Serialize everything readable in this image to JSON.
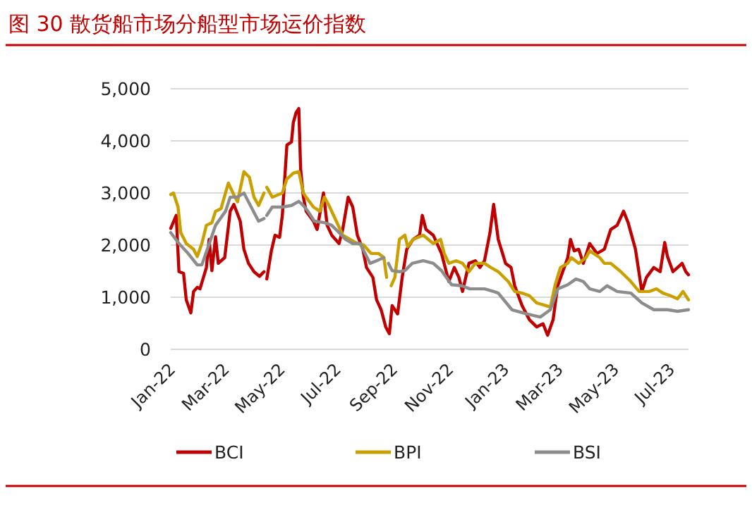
{
  "chart_data": {
    "type": "line",
    "title": "图 30    散货船市场分船型市场运价指数",
    "xlim": [
      "2022-01-01",
      "2023-07-21"
    ],
    "xticks": [
      {
        "value": "2022-01-01",
        "label": "Jan-22"
      },
      {
        "value": "2022-03-01",
        "label": "Mar-22"
      },
      {
        "value": "2022-05-01",
        "label": "May-22"
      },
      {
        "value": "2022-07-01",
        "label": "Jul-22"
      },
      {
        "value": "2022-09-01",
        "label": "Sep-22"
      },
      {
        "value": "2022-11-01",
        "label": "Nov-22"
      },
      {
        "value": "2023-01-01",
        "label": "Jan-23"
      },
      {
        "value": "2023-03-01",
        "label": "Mar-23"
      },
      {
        "value": "2023-05-01",
        "label": "May-23"
      },
      {
        "value": "2023-07-01",
        "label": "Jul-23"
      }
    ],
    "ylim": [
      0,
      5000
    ],
    "yticks": [
      {
        "value": 0,
        "label": "0"
      },
      {
        "value": 1000,
        "label": "1,000"
      },
      {
        "value": 2000,
        "label": "2,000"
      },
      {
        "value": 3000,
        "label": "3,000"
      },
      {
        "value": 4000,
        "label": "4,000"
      },
      {
        "value": 5000,
        "label": "5,000"
      }
    ],
    "grid": "y",
    "legend": "bottom",
    "series": [
      {
        "name": "BCI",
        "color": "#c00000",
        "x": [
          "2022-01-01",
          "2022-01-07",
          "2022-01-10",
          "2022-01-15",
          "2022-01-18",
          "2022-01-23",
          "2022-01-26",
          "2022-01-30",
          "2022-02-02",
          "2022-02-09",
          "2022-02-12",
          "2022-02-15",
          "2022-02-19",
          "2022-02-22",
          "2022-03-01",
          "2022-03-07",
          "2022-03-11",
          "2022-03-18",
          "2022-03-22",
          "2022-03-27",
          "2022-04-02",
          "2022-04-08",
          "2022-04-13",
          "2022-04-14",
          "2022-04-16",
          "2022-04-21",
          "2022-04-25",
          "2022-04-30",
          "2022-05-03",
          "2022-05-08",
          "2022-05-13",
          "2022-05-15",
          "2022-05-18",
          "2022-05-21",
          "2022-05-23",
          "2022-05-26",
          "2022-05-29",
          "2022-06-06",
          "2022-06-10",
          "2022-06-17",
          "2022-06-21",
          "2022-06-26",
          "2022-07-04",
          "2022-07-08",
          "2022-07-14",
          "2022-07-19",
          "2022-07-24",
          "2022-07-30",
          "2022-08-03",
          "2022-08-10",
          "2022-08-14",
          "2022-08-19",
          "2022-08-24",
          "2022-08-28",
          "2022-08-31",
          "2022-09-06",
          "2022-09-11",
          "2022-09-16",
          "2022-09-23",
          "2022-09-30",
          "2022-10-03",
          "2022-10-07",
          "2022-10-15",
          "2022-10-24",
          "2022-11-01",
          "2022-11-07",
          "2022-11-12",
          "2022-11-16",
          "2022-11-23",
          "2022-11-30",
          "2022-12-05",
          "2022-12-10",
          "2022-12-16",
          "2022-12-20",
          "2022-12-25",
          "2023-01-02",
          "2023-01-08",
          "2023-01-12",
          "2023-01-20",
          "2023-01-28",
          "2023-02-05",
          "2023-02-12",
          "2023-02-17",
          "2023-02-23",
          "2023-02-28",
          "2023-03-11",
          "2023-03-14",
          "2023-03-18",
          "2023-03-23",
          "2023-03-28",
          "2023-04-04",
          "2023-04-12",
          "2023-04-20",
          "2023-04-27",
          "2023-05-04",
          "2023-05-11",
          "2023-05-16",
          "2023-05-24",
          "2023-05-31",
          "2023-06-05",
          "2023-06-13",
          "2023-06-20",
          "2023-06-25",
          "2023-06-28",
          "2023-07-04",
          "2023-07-09",
          "2023-07-14",
          "2023-07-18",
          "2023-07-21"
        ],
        "values": [
          2320,
          2570,
          1490,
          1460,
          950,
          700,
          1110,
          1190,
          1160,
          1570,
          2110,
          1510,
          2160,
          1650,
          1760,
          2650,
          2780,
          2460,
          1920,
          1650,
          1490,
          1400,
          1490,
          null,
          1350,
          1890,
          2190,
          2150,
          2570,
          3920,
          3980,
          4350,
          4540,
          4620,
          3460,
          2920,
          2650,
          2460,
          2300,
          3000,
          2380,
          2190,
          2030,
          2300,
          2920,
          2730,
          2190,
          1920,
          1570,
          1380,
          950,
          760,
          430,
          300,
          840,
          680,
          1380,
          1920,
          2110,
          2190,
          2570,
          2300,
          2190,
          1840,
          1300,
          1570,
          1380,
          1110,
          1650,
          1700,
          1570,
          1700,
          2240,
          2780,
          2110,
          1650,
          1570,
          1220,
          840,
          570,
          430,
          490,
          270,
          570,
          1220,
          1760,
          2110,
          1890,
          1920,
          1650,
          2030,
          1840,
          1920,
          2300,
          2380,
          2650,
          2430,
          1920,
          1110,
          1380,
          1570,
          1490,
          2050,
          1780,
          1490,
          1570,
          1650,
          1490,
          1430
        ]
      },
      {
        "name": "BPI",
        "color": "#c9a000",
        "x": [
          "2022-01-01",
          "2022-01-04",
          "2022-01-09",
          "2022-01-12",
          "2022-01-18",
          "2022-01-26",
          "2022-01-30",
          "2022-02-04",
          "2022-02-09",
          "2022-02-15",
          "2022-02-19",
          "2022-02-25",
          "2022-03-05",
          "2022-03-10",
          "2022-03-15",
          "2022-03-22",
          "2022-03-28",
          "2022-04-02",
          "2022-04-07",
          "2022-04-13",
          "2022-04-14",
          "2022-04-16",
          "2022-04-22",
          "2022-05-03",
          "2022-05-08",
          "2022-05-15",
          "2022-05-21",
          "2022-05-26",
          "2022-05-29",
          "2022-06-06",
          "2022-06-13",
          "2022-06-18",
          "2022-06-23",
          "2022-07-01",
          "2022-07-08",
          "2022-07-16",
          "2022-07-24",
          "2022-07-31",
          "2022-08-08",
          "2022-08-16",
          "2022-08-22",
          "2022-08-25",
          "2022-08-27",
          "2022-08-30",
          "2022-09-03",
          "2022-09-08",
          "2022-09-14",
          "2022-09-17",
          "2022-09-23",
          "2022-10-04",
          "2022-10-15",
          "2022-10-23",
          "2022-10-27",
          "2022-11-01",
          "2022-11-09",
          "2022-11-16",
          "2022-11-23",
          "2022-11-30",
          "2022-12-10",
          "2022-12-17",
          "2022-12-25",
          "2023-01-05",
          "2023-01-12",
          "2023-01-20",
          "2023-01-28",
          "2023-02-05",
          "2023-02-15",
          "2023-02-20",
          "2023-02-25",
          "2023-03-03",
          "2023-03-11",
          "2023-03-15",
          "2023-03-23",
          "2023-03-31",
          "2023-04-04",
          "2023-04-15",
          "2023-04-20",
          "2023-04-27",
          "2023-05-08",
          "2023-05-19",
          "2023-05-28",
          "2023-06-08",
          "2023-06-16",
          "2023-06-23",
          "2023-07-01",
          "2023-07-09",
          "2023-07-15",
          "2023-07-21"
        ],
        "values": [
          2970,
          3000,
          2730,
          2240,
          2030,
          1920,
          1780,
          2030,
          2380,
          2430,
          2650,
          2700,
          3190,
          3000,
          2830,
          3410,
          3300,
          2920,
          2760,
          3000,
          null,
          3110,
          2920,
          3000,
          3270,
          3380,
          3410,
          3000,
          2920,
          2730,
          2650,
          2920,
          2760,
          2460,
          2190,
          2110,
          2030,
          2000,
          1840,
          1840,
          1760,
          1380,
          null,
          1220,
          1380,
          2110,
          2190,
          1970,
          2110,
          2190,
          2030,
          2110,
          1840,
          1650,
          1700,
          1650,
          1490,
          1650,
          1650,
          1570,
          1490,
          1300,
          1110,
          1080,
          1030,
          890,
          840,
          810,
          1220,
          1570,
          1650,
          1760,
          1650,
          1760,
          1890,
          1760,
          1650,
          1650,
          1490,
          1300,
          1110,
          1110,
          1160,
          1080,
          1030,
          970,
          1110,
          950
        ]
      },
      {
        "name": "BSI",
        "color": "#8c8c8c",
        "x": [
          "2022-01-01",
          "2022-01-10",
          "2022-01-20",
          "2022-01-30",
          "2022-02-04",
          "2022-02-10",
          "2022-02-19",
          "2022-03-02",
          "2022-03-07",
          "2022-03-15",
          "2022-03-22",
          "2022-03-30",
          "2022-04-07",
          "2022-04-13",
          "2022-04-14",
          "2022-04-16",
          "2022-04-22",
          "2022-05-03",
          "2022-05-13",
          "2022-05-21",
          "2022-05-26",
          "2022-05-31",
          "2022-06-07",
          "2022-06-18",
          "2022-06-26",
          "2022-07-04",
          "2022-07-11",
          "2022-07-19",
          "2022-07-27",
          "2022-07-31",
          "2022-08-07",
          "2022-08-14",
          "2022-08-22",
          "2022-08-25",
          "2022-08-27",
          "2022-08-31",
          "2022-09-08",
          "2022-09-14",
          "2022-09-22",
          "2022-10-04",
          "2022-10-15",
          "2022-10-24",
          "2022-11-04",
          "2022-11-15",
          "2022-11-24",
          "2022-12-10",
          "2022-12-20",
          "2022-12-25",
          "2023-01-09",
          "2023-01-25",
          "2023-02-09",
          "2023-02-20",
          "2023-02-28",
          "2023-03-11",
          "2023-03-20",
          "2023-03-28",
          "2023-04-04",
          "2023-04-15",
          "2023-04-23",
          "2023-05-04",
          "2023-05-19",
          "2023-05-31",
          "2023-06-13",
          "2023-06-28",
          "2023-07-09",
          "2023-07-21"
        ],
        "values": [
          2240,
          2030,
          1840,
          1620,
          1620,
          1920,
          2380,
          2650,
          2920,
          2920,
          3000,
          2730,
          2460,
          2510,
          null,
          2570,
          2730,
          2730,
          2760,
          2840,
          2760,
          2650,
          2460,
          2430,
          2380,
          2240,
          2110,
          2030,
          2030,
          1890,
          1650,
          1700,
          1760,
          null,
          1650,
          1510,
          1490,
          1510,
          1650,
          1700,
          1650,
          1510,
          1240,
          1220,
          1160,
          1160,
          1110,
          1080,
          760,
          680,
          620,
          760,
          1160,
          1240,
          1350,
          1300,
          1160,
          1110,
          1220,
          1110,
          1080,
          890,
          760,
          760,
          730,
          760
        ]
      }
    ]
  }
}
